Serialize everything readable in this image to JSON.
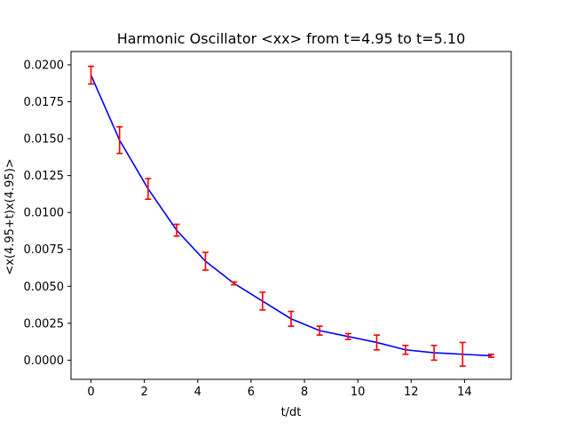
{
  "chart_data": {
    "type": "line",
    "title": "Harmonic Oscillator <xx> from t=4.95 to t=5.10",
    "xlabel": "t/dt",
    "ylabel": "<x(4.95+t)x(4.95)>",
    "xlim": [
      -0.75,
      15.75
    ],
    "ylim": [
      -0.0013,
      0.0209
    ],
    "grid": false,
    "x_ticks": [
      0,
      2,
      4,
      6,
      8,
      10,
      12,
      14
    ],
    "x_tick_labels": [
      "0",
      "2",
      "4",
      "6",
      "8",
      "10",
      "12",
      "14"
    ],
    "y_ticks": [
      0.0,
      0.0025,
      0.005,
      0.0075,
      0.01,
      0.0125,
      0.015,
      0.0175,
      0.02
    ],
    "y_tick_labels": [
      "0.0000",
      "0.0025",
      "0.0050",
      "0.0075",
      "0.0100",
      "0.0125",
      "0.0150",
      "0.0175",
      "0.0200"
    ],
    "series": [
      {
        "line_color": "#0000ff",
        "errorbar_color": "#ff0000",
        "x": [
          0,
          1.07,
          2.14,
          3.21,
          4.29,
          5.36,
          6.43,
          7.5,
          8.57,
          9.64,
          10.71,
          11.79,
          12.86,
          13.93,
          15.0
        ],
        "y": [
          0.0193,
          0.0149,
          0.0116,
          0.0088,
          0.0067,
          0.0052,
          0.004,
          0.0028,
          0.002,
          0.0016,
          0.0012,
          0.0007,
          0.0005,
          0.0004,
          0.0003
        ],
        "yerr": [
          0.0006,
          0.0009,
          0.0007,
          0.0004,
          0.0006,
          0.0001,
          0.0006,
          0.0005,
          0.0003,
          0.0002,
          0.0005,
          0.0003,
          0.0005,
          0.0008,
          0.0001
        ]
      }
    ]
  }
}
